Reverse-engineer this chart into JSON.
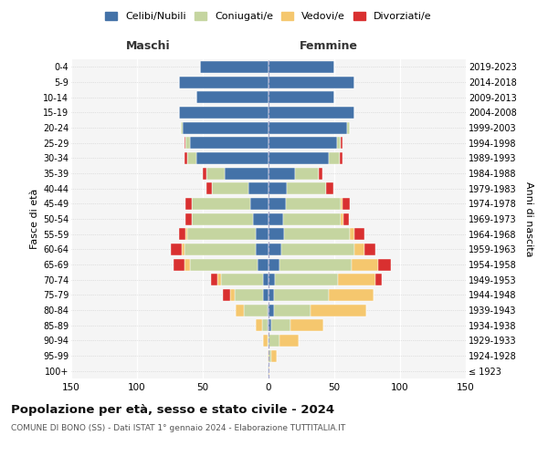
{
  "age_groups": [
    "100+",
    "95-99",
    "90-94",
    "85-89",
    "80-84",
    "75-79",
    "70-74",
    "65-69",
    "60-64",
    "55-59",
    "50-54",
    "45-49",
    "40-44",
    "35-39",
    "30-34",
    "25-29",
    "20-24",
    "15-19",
    "10-14",
    "5-9",
    "0-4"
  ],
  "birth_years": [
    "≤ 1923",
    "1924-1928",
    "1929-1933",
    "1934-1938",
    "1939-1943",
    "1944-1948",
    "1949-1953",
    "1954-1958",
    "1959-1963",
    "1964-1968",
    "1969-1973",
    "1974-1978",
    "1979-1983",
    "1984-1988",
    "1989-1993",
    "1994-1998",
    "1999-2003",
    "2004-2008",
    "2009-2013",
    "2014-2018",
    "2019-2023"
  ],
  "maschi": {
    "celibi": [
      1,
      0,
      0,
      1,
      1,
      4,
      4,
      8,
      10,
      10,
      12,
      14,
      15,
      33,
      55,
      60,
      65,
      68,
      55,
      68,
      52
    ],
    "coniugati": [
      0,
      0,
      1,
      4,
      18,
      22,
      32,
      52,
      54,
      52,
      46,
      44,
      28,
      14,
      7,
      3,
      2,
      0,
      0,
      0,
      0
    ],
    "vedovi": [
      0,
      1,
      3,
      5,
      6,
      3,
      3,
      4,
      2,
      1,
      0,
      0,
      0,
      0,
      0,
      0,
      0,
      0,
      0,
      0,
      0
    ],
    "divorziati": [
      0,
      0,
      0,
      0,
      0,
      6,
      5,
      8,
      8,
      5,
      5,
      5,
      4,
      3,
      2,
      1,
      0,
      0,
      0,
      0,
      0
    ]
  },
  "femmine": {
    "nubili": [
      0,
      0,
      0,
      2,
      4,
      4,
      5,
      8,
      10,
      12,
      11,
      13,
      14,
      20,
      46,
      52,
      60,
      65,
      50,
      65,
      50
    ],
    "coniugate": [
      0,
      2,
      8,
      15,
      28,
      42,
      48,
      55,
      55,
      50,
      44,
      42,
      30,
      18,
      8,
      3,
      2,
      0,
      0,
      0,
      0
    ],
    "vedove": [
      1,
      4,
      15,
      25,
      42,
      34,
      28,
      20,
      8,
      3,
      2,
      1,
      0,
      0,
      0,
      0,
      0,
      0,
      0,
      0,
      0
    ],
    "divorziate": [
      0,
      0,
      0,
      0,
      0,
      0,
      5,
      10,
      8,
      8,
      4,
      6,
      5,
      3,
      2,
      1,
      0,
      0,
      0,
      0,
      0
    ]
  },
  "colors": {
    "celibi": "#4472a8",
    "coniugati": "#c5d5a0",
    "vedovi": "#f5c76e",
    "divorziati": "#d93030"
  },
  "title": "Popolazione per età, sesso e stato civile - 2024",
  "subtitle": "COMUNE DI BONO (SS) - Dati ISTAT 1° gennaio 2024 - Elaborazione TUTTITALIA.IT",
  "xlabel_left": "Maschi",
  "xlabel_right": "Femmine",
  "ylabel_left": "Fasce di età",
  "ylabel_right": "Anni di nascita",
  "xlim": 150,
  "background_color": "#ffffff",
  "legend_labels": [
    "Celibi/Nubili",
    "Coniugati/e",
    "Vedovi/e",
    "Divorziati/e"
  ]
}
